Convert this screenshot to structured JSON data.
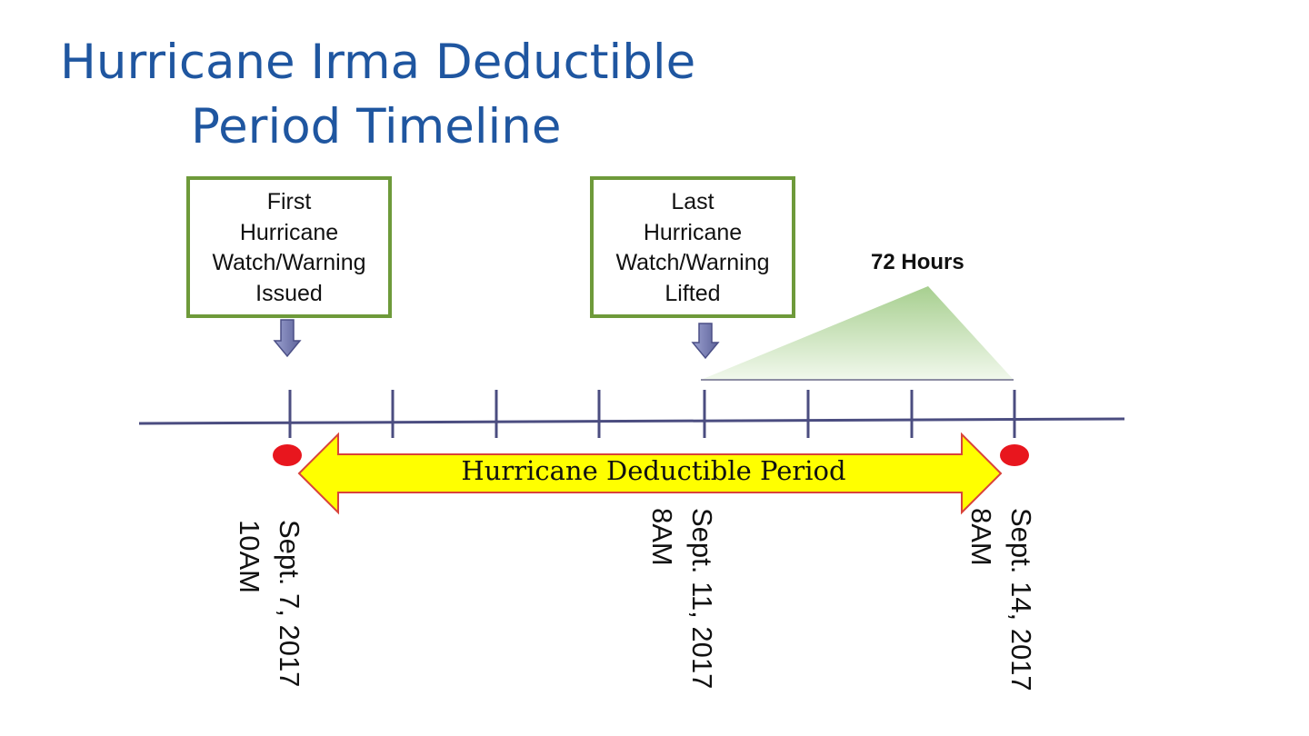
{
  "title": {
    "line1": "Hurricane Irma Deductible",
    "line2": "Period Timeline"
  },
  "callouts": {
    "first": [
      "First",
      "Hurricane",
      "Watch/Warning",
      "Issued"
    ],
    "last": [
      "Last",
      "Hurricane",
      "Watch/Warning",
      "Lifted"
    ]
  },
  "hours_label": "72 Hours",
  "period_label": "Hurricane Deductible Period",
  "dates": {
    "sept7": [
      "Sept. 7, 2017",
      "10AM"
    ],
    "sept11": [
      "Sept. 11, 2017",
      "8AM"
    ],
    "sept14": [
      "Sept. 14, 2017",
      "8AM"
    ]
  },
  "colors": {
    "title": "#1f56a0",
    "callout_border": "#6e9a3a",
    "timeline": "#4b4d80",
    "marker": "#e8161e",
    "band_fill": "#ffff00",
    "band_border": "#d9433a",
    "arrow_fill": "#7d83b8",
    "triangle": "#a7cf8f"
  }
}
